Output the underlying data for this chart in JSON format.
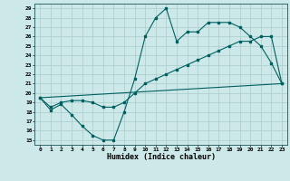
{
  "xlabel": "Humidex (Indice chaleur)",
  "xlim": [
    -0.5,
    23.5
  ],
  "ylim": [
    14.5,
    29.5
  ],
  "yticks": [
    15,
    16,
    17,
    18,
    19,
    20,
    21,
    22,
    23,
    24,
    25,
    26,
    27,
    28,
    29
  ],
  "xticks": [
    0,
    1,
    2,
    3,
    4,
    5,
    6,
    7,
    8,
    9,
    10,
    11,
    12,
    13,
    14,
    15,
    16,
    17,
    18,
    19,
    20,
    21,
    22,
    23
  ],
  "bg_color": "#cce8e8",
  "grid_color": "#aacccc",
  "line_color": "#006060",
  "line1_x": [
    0,
    1,
    2,
    3,
    4,
    5,
    6,
    7,
    8,
    9,
    10,
    11,
    12,
    13,
    14,
    15,
    16,
    17,
    18,
    19,
    20,
    21,
    22,
    23
  ],
  "line1_y": [
    19.5,
    18.2,
    18.8,
    17.7,
    16.5,
    15.5,
    15.0,
    15.0,
    18.0,
    21.5,
    26.0,
    28.0,
    29.0,
    25.5,
    26.5,
    26.5,
    27.5,
    27.5,
    27.5,
    27.0,
    26.0,
    25.0,
    23.2,
    21.0
  ],
  "line2_x": [
    0,
    23
  ],
  "line2_y": [
    19.5,
    21.0
  ],
  "line3_x": [
    0,
    1,
    2,
    3,
    4,
    5,
    6,
    7,
    8,
    9,
    10,
    11,
    12,
    13,
    14,
    15,
    16,
    17,
    18,
    19,
    20,
    21,
    22,
    23
  ],
  "line3_y": [
    19.5,
    18.5,
    19.0,
    19.2,
    19.2,
    19.0,
    18.5,
    18.5,
    19.0,
    20.0,
    21.0,
    21.5,
    22.0,
    22.5,
    23.0,
    23.5,
    24.0,
    24.5,
    25.0,
    25.5,
    25.5,
    26.0,
    26.0,
    21.0
  ]
}
